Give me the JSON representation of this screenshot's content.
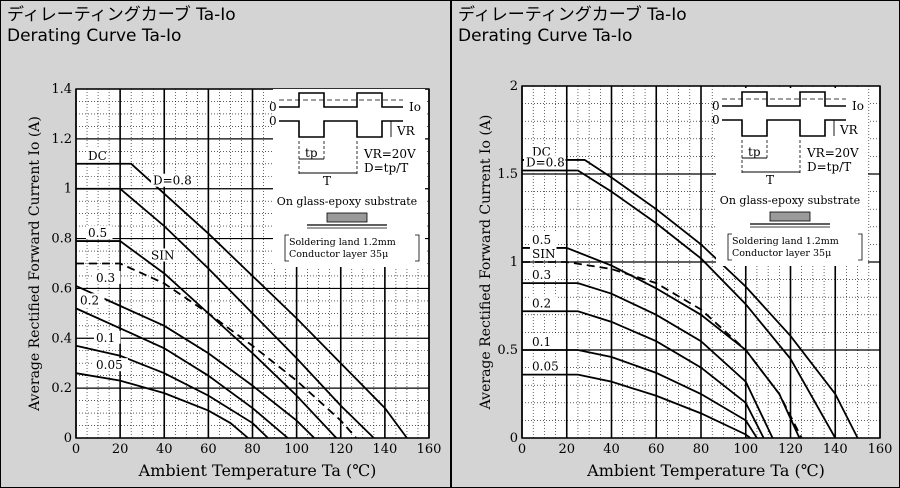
{
  "panels": [
    {
      "title_jp": "ディレーティングカーブ Ta-Io",
      "title_en": "Derating Curve Ta-Io",
      "chart_data": {
        "type": "line",
        "xlabel": "Ambient Temperature  Ta (℃)",
        "ylabel": "Average Rectified Forward Current  Io (A)",
        "xlim": [
          0,
          160
        ],
        "ylim": [
          0,
          1.4
        ],
        "xticks": [
          "0",
          "20",
          "40",
          "60",
          "80",
          "100",
          "120",
          "140",
          "160"
        ],
        "yticks": [
          "0",
          "0.2",
          "0.4",
          "0.6",
          "0.8",
          "1",
          "1.2",
          "1.4"
        ],
        "grid": true,
        "series": [
          {
            "name": "DC",
            "dashed": false,
            "x": [
              0,
              25,
              40,
              60,
              80,
              100,
              120,
              140,
              150
            ],
            "y": [
              1.1,
              1.1,
              0.98,
              0.82,
              0.65,
              0.48,
              0.3,
              0.12,
              0.0
            ]
          },
          {
            "name": "D=0.8",
            "dashed": false,
            "x": [
              0,
              20,
              40,
              60,
              80,
              100,
              120,
              135
            ],
            "y": [
              1.0,
              1.0,
              0.85,
              0.68,
              0.5,
              0.32,
              0.13,
              0.0
            ]
          },
          {
            "name": "0.5",
            "dashed": false,
            "x": [
              0,
              20,
              40,
              60,
              80,
              100,
              118
            ],
            "y": [
              0.79,
              0.79,
              0.66,
              0.5,
              0.34,
              0.17,
              0.0
            ]
          },
          {
            "name": "SIN",
            "dashed": true,
            "x": [
              0,
              20,
              40,
              60,
              80,
              100,
              120,
              127
            ],
            "y": [
              0.7,
              0.7,
              0.62,
              0.5,
              0.37,
              0.23,
              0.07,
              0.0
            ]
          },
          {
            "name": "0.3",
            "dashed": false,
            "x": [
              0,
              20,
              40,
              60,
              80,
              100,
              108
            ],
            "y": [
              0.61,
              0.53,
              0.45,
              0.34,
              0.21,
              0.07,
              0.0
            ]
          },
          {
            "name": "0.2",
            "dashed": false,
            "x": [
              0,
              20,
              40,
              60,
              80,
              96
            ],
            "y": [
              0.52,
              0.44,
              0.36,
              0.25,
              0.12,
              0.0
            ]
          },
          {
            "name": "0.1",
            "dashed": false,
            "x": [
              0,
              20,
              40,
              60,
              80,
              87
            ],
            "y": [
              0.37,
              0.33,
              0.26,
              0.17,
              0.06,
              0.0
            ]
          },
          {
            "name": "0.05",
            "dashed": false,
            "x": [
              0,
              20,
              40,
              60,
              70,
              78
            ],
            "y": [
              0.26,
              0.23,
              0.18,
              0.11,
              0.06,
              0.0
            ]
          }
        ],
        "inset": {
          "label_io": "Io",
          "label_vr": "VR",
          "label_zero_top": "0",
          "label_zero_bottom": "0",
          "label_tp": "tp",
          "label_T": "T",
          "vr_value": "VR=20V",
          "duty": "D=tp/T",
          "substrate": "On glass-epoxy substrate",
          "land": "Soldering land 1.2mm",
          "layer": "Conductor layer 35μ"
        }
      }
    },
    {
      "title_jp": "ディレーティングカーブ Ta-Io",
      "title_en": "Derating Curve Ta-Io",
      "chart_data": {
        "type": "line",
        "xlabel": "Ambient Temperature  Ta (℃)",
        "ylabel": "Average Rectified Forward Current  Io (A)",
        "xlim": [
          0,
          160
        ],
        "ylim": [
          0,
          2
        ],
        "xticks": [
          "0",
          "20",
          "40",
          "60",
          "80",
          "100",
          "120",
          "140",
          "160"
        ],
        "yticks": [
          "0",
          "0.5",
          "1",
          "1.5",
          "2"
        ],
        "grid": true,
        "series": [
          {
            "name": "DC",
            "dashed": false,
            "x": [
              0,
              28,
              40,
              60,
              80,
              100,
              120,
              140,
              150
            ],
            "y": [
              1.58,
              1.58,
              1.48,
              1.3,
              1.1,
              0.86,
              0.58,
              0.25,
              0.0
            ]
          },
          {
            "name": "D=0.8",
            "dashed": false,
            "x": [
              0,
              25,
              40,
              60,
              80,
              100,
              120,
              140
            ],
            "y": [
              1.52,
              1.52,
              1.4,
              1.22,
              1.02,
              0.76,
              0.45,
              0.0
            ]
          },
          {
            "name": "0.5",
            "dashed": false,
            "x": [
              0,
              20,
              40,
              60,
              80,
              100,
              115,
              124
            ],
            "y": [
              1.08,
              1.08,
              0.98,
              0.85,
              0.7,
              0.5,
              0.25,
              0.0
            ]
          },
          {
            "name": "SIN",
            "dashed": true,
            "x": [
              0,
              20,
              40,
              60,
              80,
              100,
              115,
              125
            ],
            "y": [
              1.0,
              1.0,
              0.96,
              0.88,
              0.73,
              0.5,
              0.25,
              0.0
            ]
          },
          {
            "name": "0.3",
            "dashed": false,
            "x": [
              0,
              25,
              40,
              60,
              80,
              100,
              112
            ],
            "y": [
              0.88,
              0.88,
              0.82,
              0.7,
              0.55,
              0.32,
              0.0
            ]
          },
          {
            "name": "0.2",
            "dashed": false,
            "x": [
              0,
              25,
              40,
              60,
              80,
              100,
              108
            ],
            "y": [
              0.72,
              0.72,
              0.66,
              0.55,
              0.4,
              0.2,
              0.0
            ]
          },
          {
            "name": "0.1",
            "dashed": false,
            "x": [
              0,
              25,
              40,
              60,
              80,
              100,
              105
            ],
            "y": [
              0.5,
              0.5,
              0.46,
              0.37,
              0.25,
              0.1,
              0.0
            ]
          },
          {
            "name": "0.05",
            "dashed": false,
            "x": [
              0,
              25,
              40,
              60,
              80,
              100,
              102
            ],
            "y": [
              0.36,
              0.36,
              0.32,
              0.24,
              0.14,
              0.02,
              0.0
            ]
          }
        ],
        "inset": {
          "label_io": "Io",
          "label_vr": "VR",
          "label_zero_top": "0",
          "label_zero_bottom": "0",
          "label_tp": "tp",
          "label_T": "T",
          "vr_value": "VR=20V",
          "duty": "D=tp/T",
          "substrate": "On glass-epoxy substrate",
          "land": "Soldering land 1.2mm",
          "layer": "Conductor layer 35μ"
        }
      }
    }
  ]
}
